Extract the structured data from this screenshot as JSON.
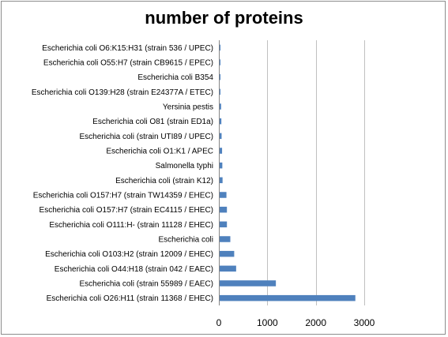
{
  "chart_data": {
    "type": "bar",
    "orientation": "horizontal",
    "title": "number of proteins",
    "xlabel": "",
    "ylabel": "",
    "xlim": [
      0,
      3000
    ],
    "xticks": [
      0,
      1000,
      2000,
      3000
    ],
    "grid": true,
    "bar_color": "#4f81bd",
    "categories": [
      "Escherichia coli O26:H11 (strain 11368 / EHEC)",
      "Escherichia coli (strain 55989 / EAEC)",
      "Escherichia coli O44:H18 (strain 042 / EAEC)",
      "Escherichia coli O103:H2 (strain 12009 / EHEC)",
      "Escherichia coli",
      "Escherichia coli O111:H- (strain 11128 / EHEC)",
      "Escherichia coli O157:H7 (strain EC4115 / EHEC)",
      "Escherichia coli O157:H7 (strain TW14359 / EHEC)",
      "Escherichia coli (strain K12)",
      "Salmonella typhi",
      "Escherichia coli O1:K1 / APEC",
      "Escherichia coli (strain UTI89 / UPEC)",
      "Escherichia coli O81 (strain ED1a)",
      "Yersinia pestis",
      "Escherichia coli O139:H28 (strain E24377A / ETEC)",
      "Escherichia coli B354",
      "Escherichia coli O55:H7 (strain CB9615 / EPEC)",
      "Escherichia coli O6:K15:H31 (strain 536 / UPEC)"
    ],
    "values": [
      2800,
      1160,
      340,
      300,
      220,
      150,
      150,
      140,
      60,
      55,
      50,
      40,
      35,
      30,
      15,
      12,
      10,
      8
    ]
  }
}
